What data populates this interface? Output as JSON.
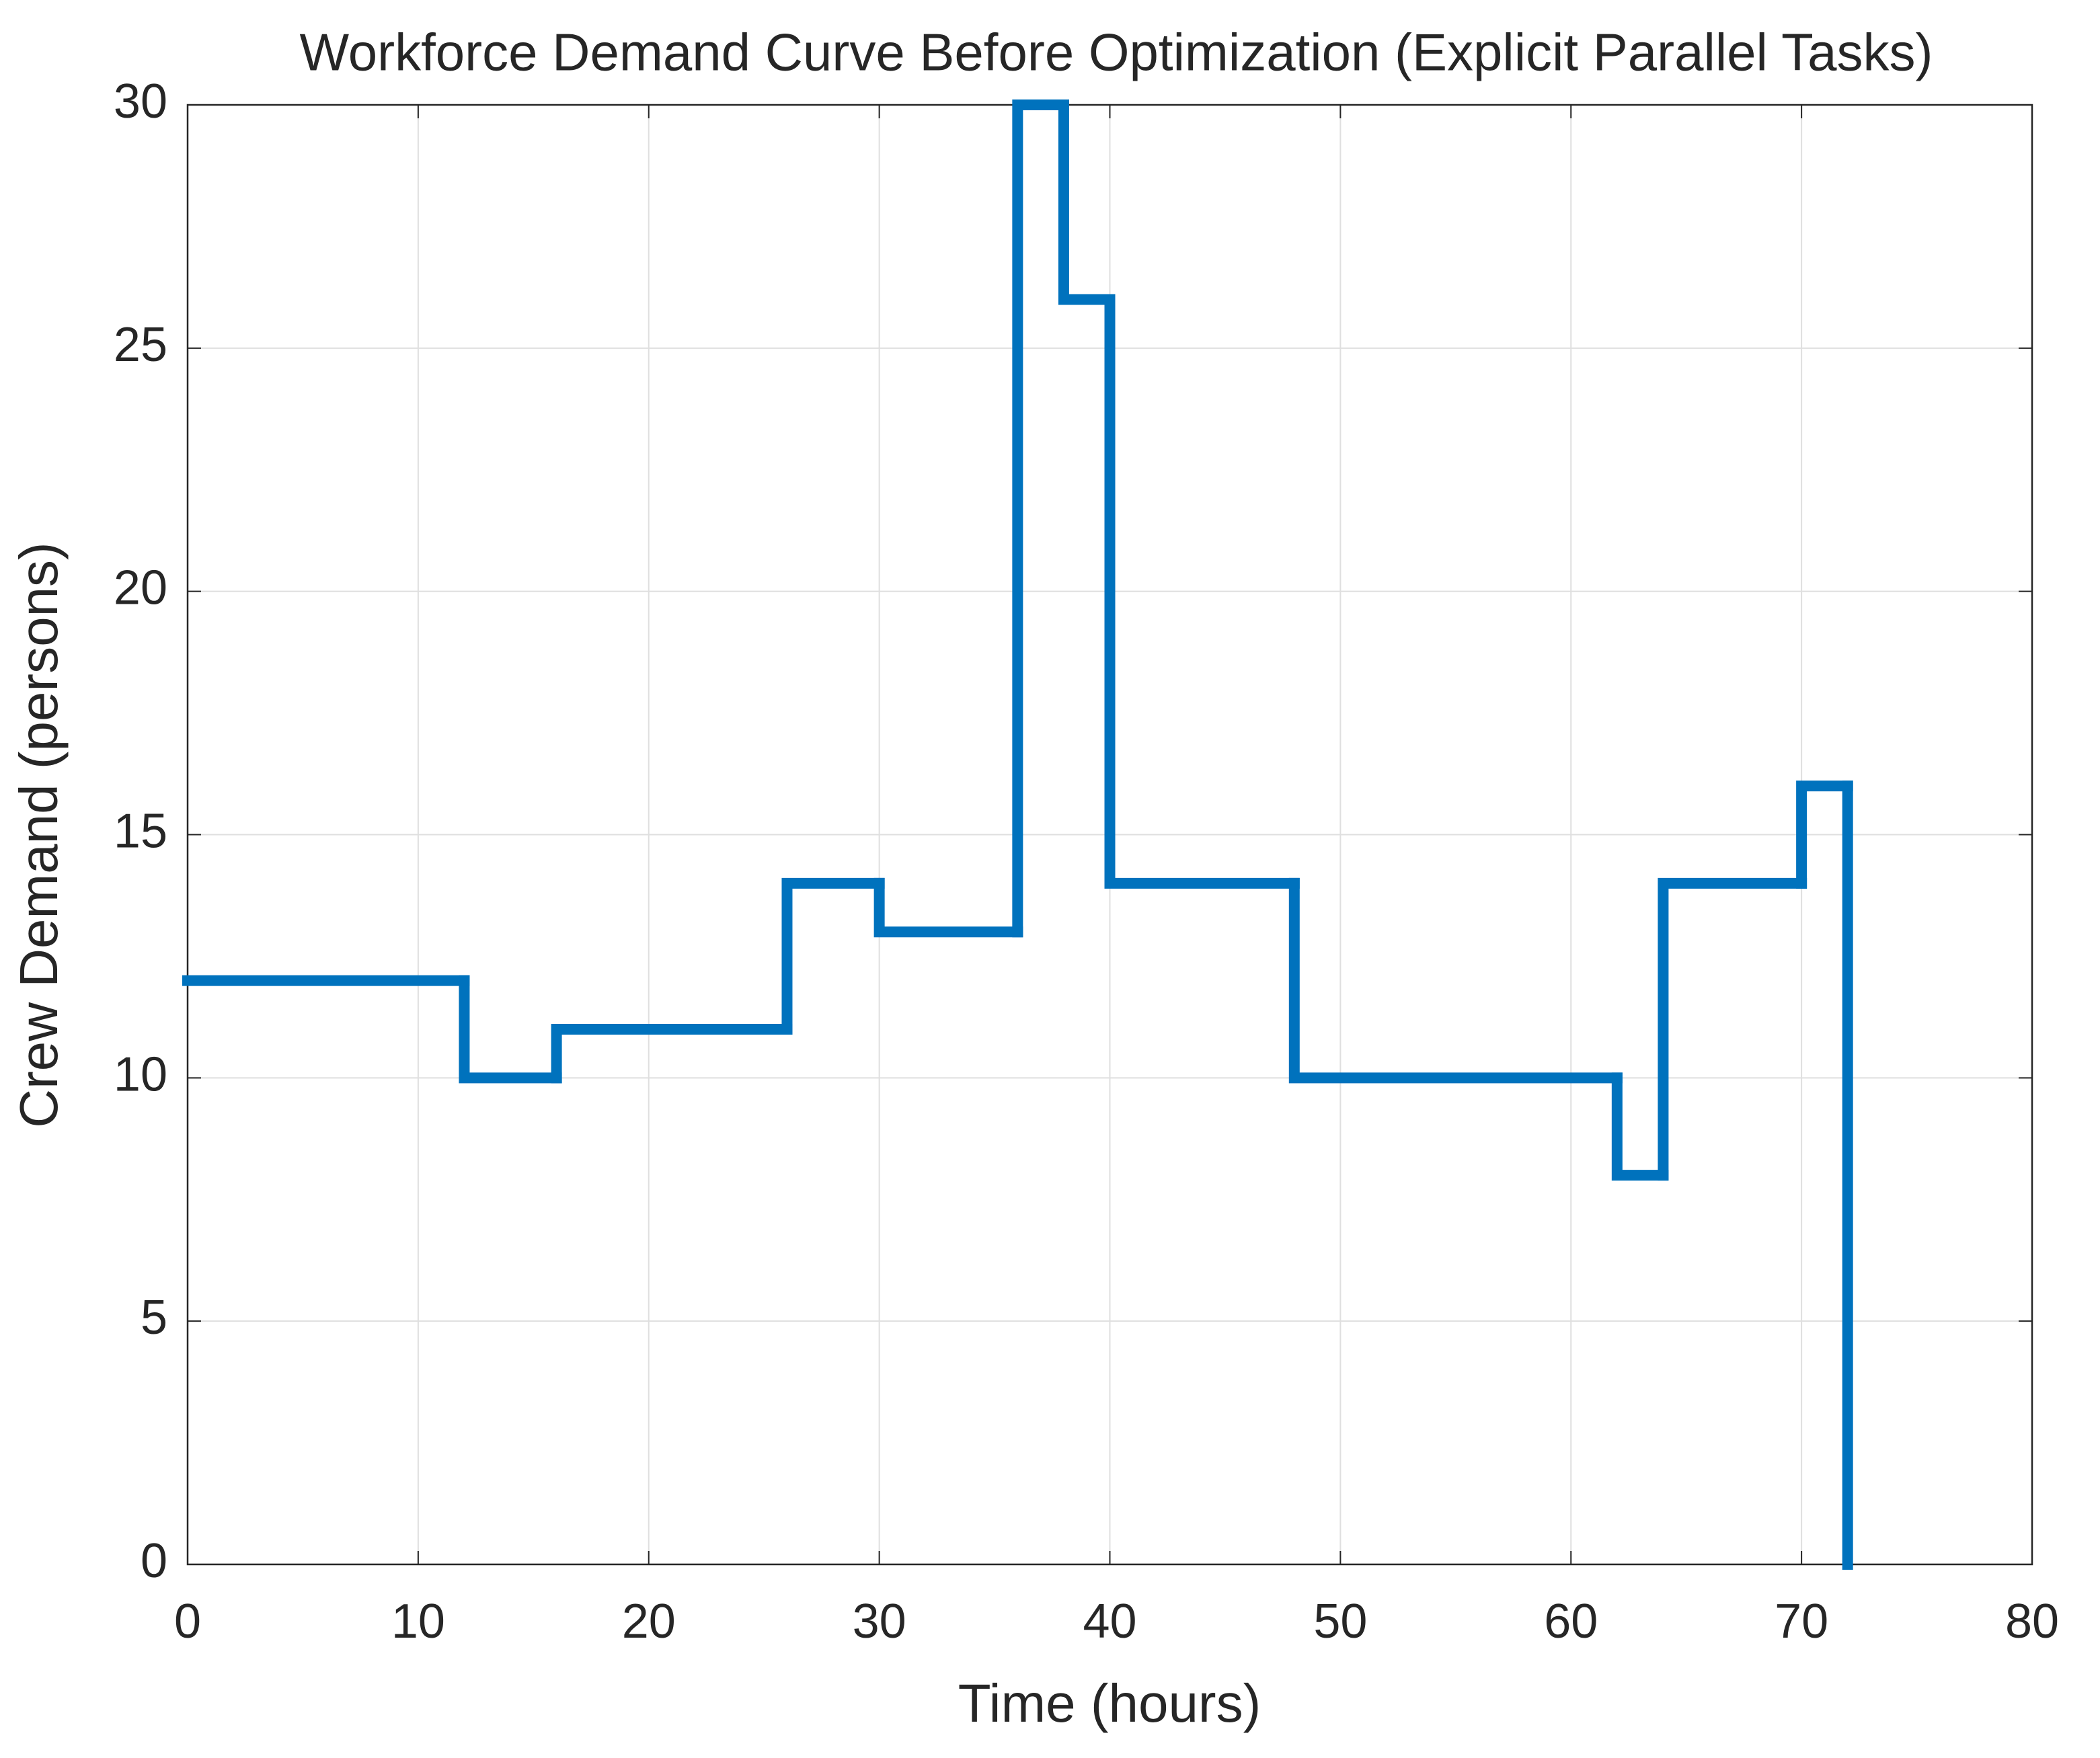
{
  "chart_data": {
    "type": "step",
    "title": "Workforce Demand Curve Before Optimization (Explicit Parallel Tasks)",
    "x_label": "Time (hours)",
    "y_label": "Crew Demand (persons)",
    "x": [
      0,
      12,
      16,
      26,
      30,
      36,
      38,
      40,
      48,
      62,
      64,
      70,
      72
    ],
    "values": [
      12,
      10,
      11,
      14,
      13,
      30,
      26,
      14,
      10,
      8,
      14,
      16,
      0
    ],
    "color": "#0072bd",
    "xlim": [
      0,
      80
    ],
    "xticks": [
      0,
      10,
      20,
      30,
      40,
      50,
      60,
      70,
      80
    ],
    "ylim": [
      0,
      30
    ],
    "yticks": [
      0,
      5,
      10,
      15,
      20,
      25,
      30
    ],
    "grid": true
  }
}
